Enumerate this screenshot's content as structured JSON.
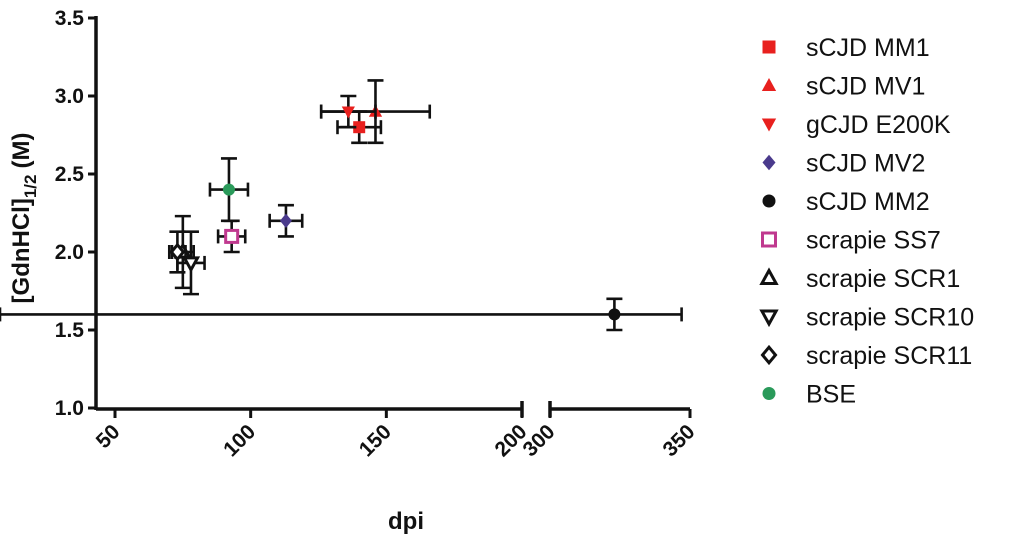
{
  "chart_data": {
    "type": "scatter",
    "title": "",
    "xlabel": "dpi",
    "ylabel_main": "[GdnHCl]",
    "ylabel_sub": "1/2",
    "ylabel_unit": "(M)",
    "x_segments": [
      {
        "range": [
          50,
          200
        ],
        "ticks": [
          "50",
          "100",
          "150",
          "200"
        ]
      },
      {
        "range": [
          300,
          350
        ],
        "ticks": [
          "300",
          "350"
        ]
      }
    ],
    "ylim": [
      1.0,
      3.5
    ],
    "yticks": [
      "1.0",
      "1.5",
      "2.0",
      "2.5",
      "3.0",
      "3.5"
    ],
    "grid": false,
    "legend_position": "right",
    "series": [
      {
        "name": "sCJD MM1",
        "marker": "square",
        "color": "#e8201e",
        "filled": true,
        "points": [
          {
            "x": 140,
            "y": 2.8,
            "xerr": 8,
            "yerr": 0.1
          }
        ]
      },
      {
        "name": "sCJD MV1",
        "marker": "triangle-up",
        "color": "#e8201e",
        "filled": true,
        "points": [
          {
            "x": 146,
            "y": 2.9,
            "xerr": 20,
            "yerr": 0.2
          }
        ]
      },
      {
        "name": "gCJD E200K",
        "marker": "triangle-down",
        "color": "#e8201e",
        "filled": true,
        "points": [
          {
            "x": 136,
            "y": 2.9,
            "xerr": 10,
            "yerr": 0.1
          }
        ]
      },
      {
        "name": "sCJD MV2",
        "marker": "diamond",
        "color": "#4a3a8c",
        "filled": true,
        "points": [
          {
            "x": 113,
            "y": 2.2,
            "xerr": 6,
            "yerr": 0.1
          }
        ]
      },
      {
        "name": "sCJD MM2",
        "marker": "circle",
        "color": "#111111",
        "filled": true,
        "points": [
          {
            "x": 323,
            "y": 1.6,
            "xerr": 24,
            "yerr": 0.1
          }
        ]
      },
      {
        "name": "scrapie SS7",
        "marker": "square",
        "color": "#c0398f",
        "filled": false,
        "points": [
          {
            "x": 93,
            "y": 2.1,
            "xerr": 5,
            "yerr": 0.1
          }
        ]
      },
      {
        "name": "scrapie SCR1",
        "marker": "triangle-up",
        "color": "#111111",
        "filled": false,
        "points": [
          {
            "x": 75,
            "y": 2.0,
            "xerr": 4,
            "yerr": 0.23
          }
        ]
      },
      {
        "name": "scrapie SCR10",
        "marker": "triangle-down",
        "color": "#111111",
        "filled": false,
        "points": [
          {
            "x": 78,
            "y": 1.93,
            "xerr": 5,
            "yerr": 0.2
          }
        ]
      },
      {
        "name": "scrapie SCR11",
        "marker": "diamond",
        "color": "#111111",
        "filled": false,
        "points": [
          {
            "x": 73,
            "y": 2.0,
            "xerr": 3,
            "yerr": 0.13
          }
        ]
      },
      {
        "name": "BSE",
        "marker": "circle",
        "color": "#2a9a5a",
        "filled": true,
        "points": [
          {
            "x": 92,
            "y": 2.4,
            "xerr": 7,
            "yerr": 0.2
          }
        ]
      }
    ]
  }
}
